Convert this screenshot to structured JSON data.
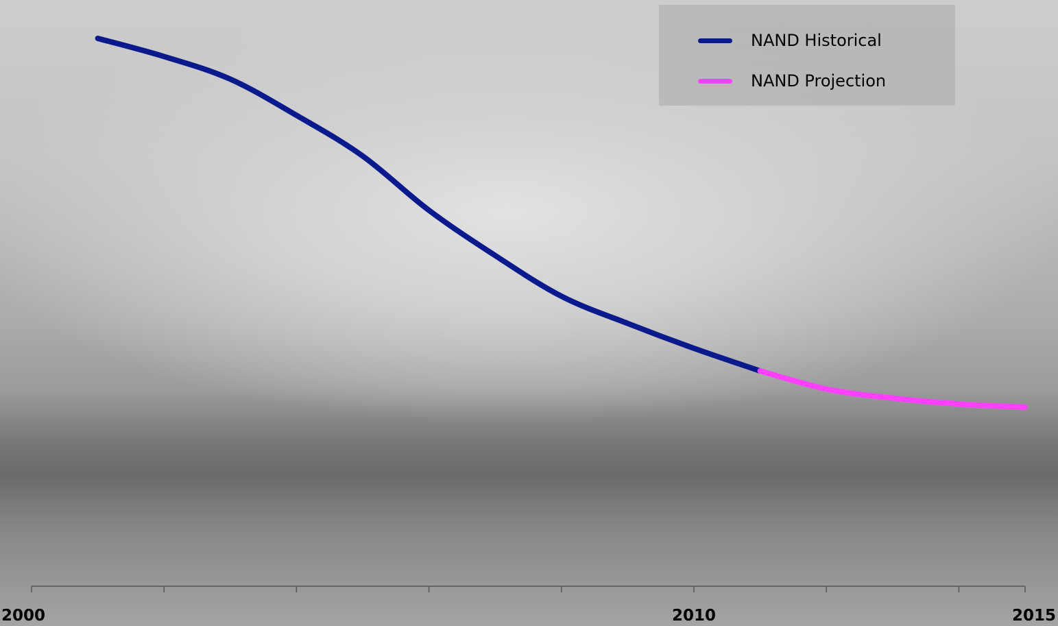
{
  "chart_data": {
    "type": "line",
    "title": "",
    "xlabel": "",
    "ylabel": "",
    "xlim": [
      2000,
      2015
    ],
    "x_tick_labels": [
      "2000",
      "2010",
      "2015"
    ],
    "grid": false,
    "legend_position": "top-right",
    "series": [
      {
        "name": "NAND Historical",
        "color": "#0a1a8c",
        "x": [
          2001,
          2002,
          2003,
          2004,
          2005,
          2006,
          2007,
          2008,
          2009,
          2010,
          2011
        ],
        "y": [
          95,
          91,
          86,
          78,
          69,
          57,
          47,
          38,
          32,
          26.5,
          21.5
        ]
      },
      {
        "name": "NAND Projection",
        "color": "#ff40ff",
        "x": [
          2011,
          2012,
          2013,
          2014,
          2015
        ],
        "y": [
          21.5,
          17.5,
          15.5,
          14.2,
          13.5
        ]
      }
    ]
  }
}
